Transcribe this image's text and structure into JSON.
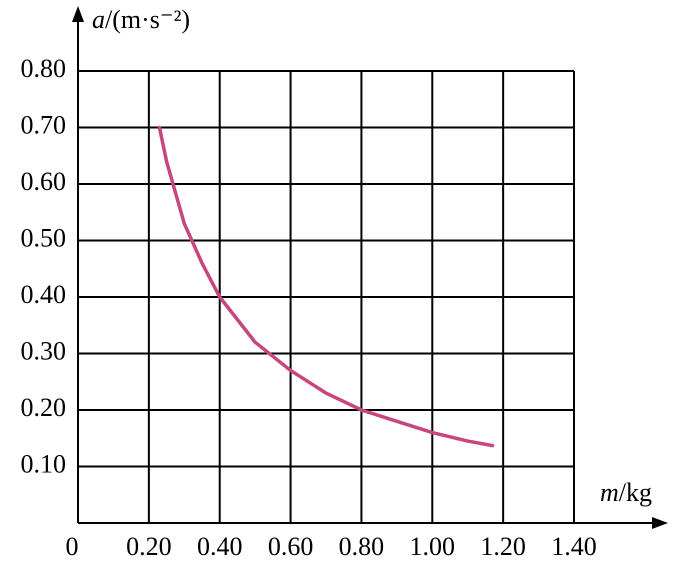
{
  "chart_data": {
    "type": "line",
    "y_label": {
      "var": "a",
      "unit": "/(m·s⁻²)"
    },
    "x_label": {
      "var": "m",
      "unit": "/kg"
    },
    "x": [
      0.23,
      0.25,
      0.3,
      0.35,
      0.4,
      0.5,
      0.6,
      0.7,
      0.8,
      0.9,
      1.0,
      1.1,
      1.17
    ],
    "series": [
      {
        "color": "#c8467e",
        "values": [
          0.7,
          0.64,
          0.53,
          0.46,
          0.4,
          0.32,
          0.27,
          0.23,
          0.2,
          0.18,
          0.16,
          0.145,
          0.137
        ]
      }
    ],
    "xlim": [
      0,
      1.4
    ],
    "ylim": [
      0,
      0.8
    ],
    "xticks": [
      0,
      {
        "value": 0.2,
        "label": "0.20"
      },
      {
        "value": 0.4,
        "label": "0.40"
      },
      {
        "value": 0.6,
        "label": "0.60"
      },
      {
        "value": 0.8,
        "label": "0.80"
      },
      {
        "value": 1.0,
        "label": "1.00"
      },
      {
        "value": 1.2,
        "label": "1.20"
      },
      {
        "value": 1.4,
        "label": "1.40"
      }
    ],
    "yticks": [
      {
        "value": 0.1,
        "label": "0.10"
      },
      {
        "value": 0.2,
        "label": "0.20"
      },
      {
        "value": 0.3,
        "label": "0.30"
      },
      {
        "value": 0.4,
        "label": "0.40"
      },
      {
        "value": 0.5,
        "label": "0.50"
      },
      {
        "value": 0.6,
        "label": "0.60"
      },
      {
        "value": 0.7,
        "label": "0.70"
      },
      {
        "value": 0.8,
        "label": "0.80"
      }
    ],
    "grid": true
  }
}
